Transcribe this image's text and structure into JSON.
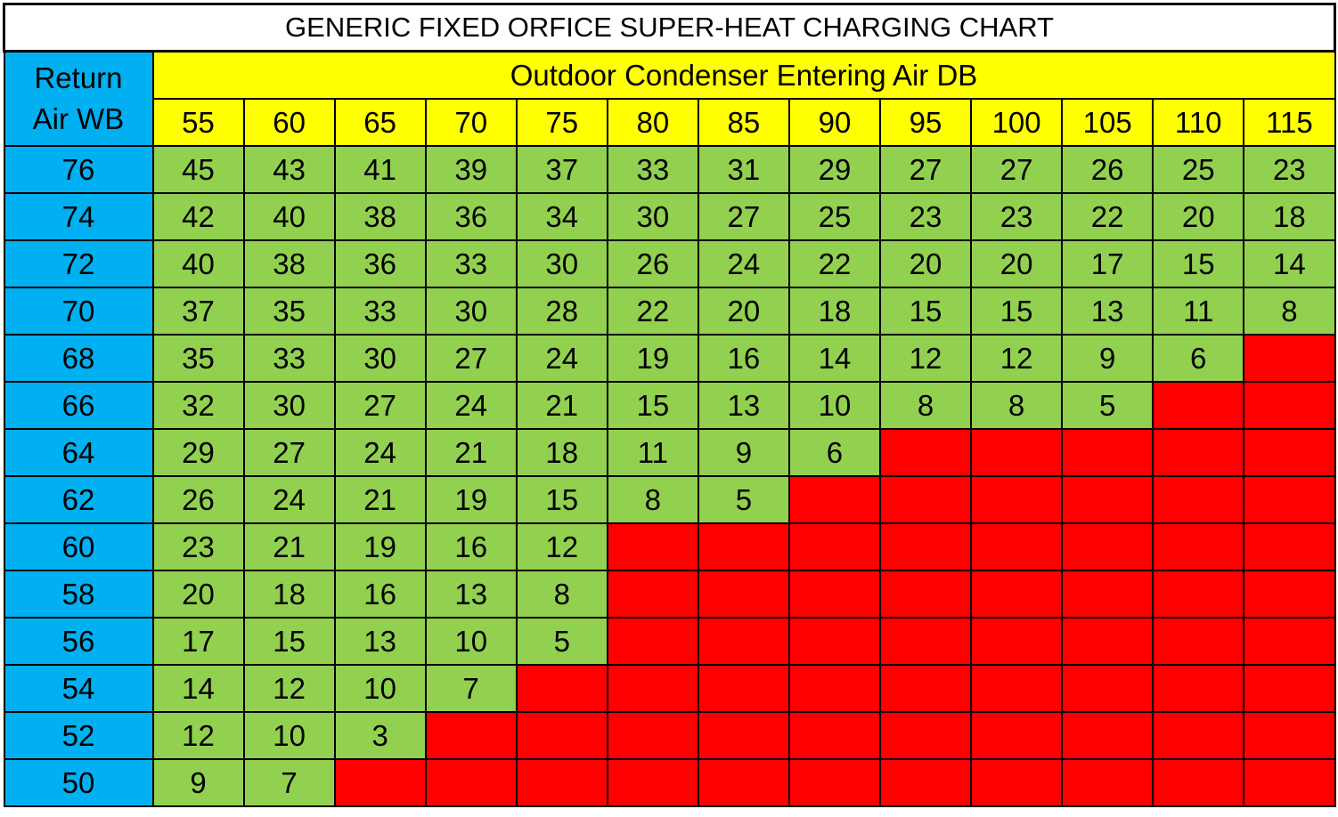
{
  "chart_data": {
    "type": "table",
    "title": "GENERIC FIXED ORFICE SUPER-HEAT CHARGING CHART",
    "row_header_label": [
      "Return",
      "Air WB"
    ],
    "column_group_label": "Outdoor Condenser Entering Air DB",
    "columns": [
      55,
      60,
      65,
      70,
      75,
      80,
      85,
      90,
      95,
      100,
      105,
      110,
      115
    ],
    "rows": [
      76,
      74,
      72,
      70,
      68,
      66,
      64,
      62,
      60,
      58,
      56,
      54,
      52,
      50
    ],
    "values": [
      [
        45,
        43,
        41,
        39,
        37,
        33,
        31,
        29,
        27,
        27,
        26,
        25,
        23
      ],
      [
        42,
        40,
        38,
        36,
        34,
        30,
        27,
        25,
        23,
        23,
        22,
        20,
        18
      ],
      [
        40,
        38,
        36,
        33,
        30,
        26,
        24,
        22,
        20,
        20,
        17,
        15,
        14
      ],
      [
        37,
        35,
        33,
        30,
        28,
        22,
        20,
        18,
        15,
        15,
        13,
        11,
        8
      ],
      [
        35,
        33,
        30,
        27,
        24,
        19,
        16,
        14,
        12,
        12,
        9,
        6,
        null
      ],
      [
        32,
        30,
        27,
        24,
        21,
        15,
        13,
        10,
        8,
        8,
        5,
        null,
        null
      ],
      [
        29,
        27,
        24,
        21,
        18,
        11,
        9,
        6,
        null,
        null,
        null,
        null,
        null
      ],
      [
        26,
        24,
        21,
        19,
        15,
        8,
        5,
        null,
        null,
        null,
        null,
        null,
        null
      ],
      [
        23,
        21,
        19,
        16,
        12,
        null,
        null,
        null,
        null,
        null,
        null,
        null,
        null
      ],
      [
        20,
        18,
        16,
        13,
        8,
        null,
        null,
        null,
        null,
        null,
        null,
        null,
        null
      ],
      [
        17,
        15,
        13,
        10,
        5,
        null,
        null,
        null,
        null,
        null,
        null,
        null,
        null
      ],
      [
        14,
        12,
        10,
        7,
        null,
        null,
        null,
        null,
        null,
        null,
        null,
        null,
        null
      ],
      [
        12,
        10,
        3,
        null,
        null,
        null,
        null,
        null,
        null,
        null,
        null,
        null,
        null
      ],
      [
        9,
        7,
        null,
        null,
        null,
        null,
        null,
        null,
        null,
        null,
        null,
        null,
        null
      ]
    ],
    "colors": {
      "row_header": "#00b0f0",
      "column_header": "#ffff00",
      "valid": "#92d050",
      "invalid": "#ff0000"
    }
  }
}
